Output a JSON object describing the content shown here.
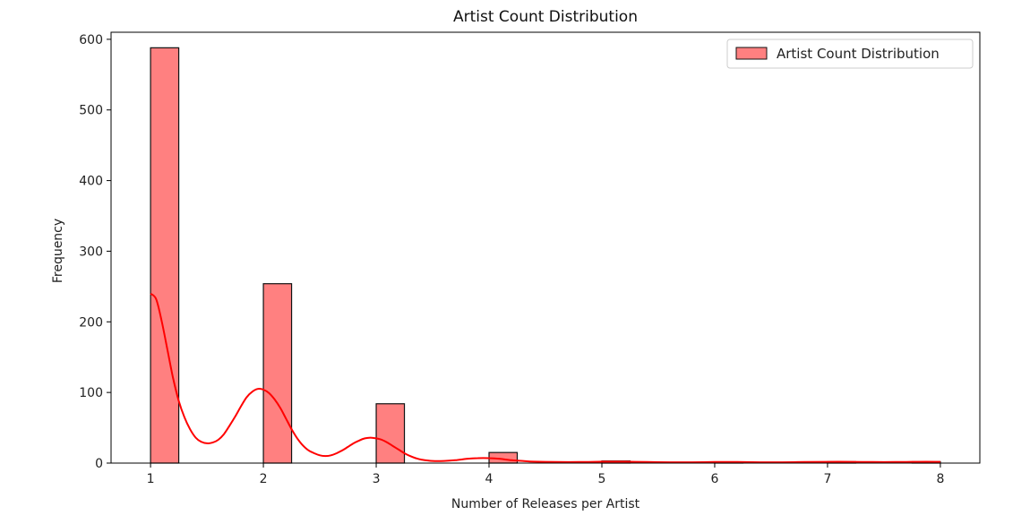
{
  "chart_data": {
    "type": "bar",
    "title": "Artist Count Distribution",
    "xlabel": "Number of Releases per Artist",
    "ylabel": "Frequency",
    "xlim": [
      0.65,
      8.35
    ],
    "ylim": [
      0,
      610
    ],
    "xticks": [
      1,
      2,
      3,
      4,
      5,
      6,
      7,
      8
    ],
    "yticks": [
      0,
      100,
      200,
      300,
      400,
      500,
      600
    ],
    "grid": false,
    "legend_position": "top-right",
    "series": [
      {
        "name": "Artist Count Distribution",
        "type": "histogram",
        "color": "#ff8080",
        "edge_color": "#111111",
        "bin_width": 0.25,
        "bins": [
          {
            "start": 1.0,
            "end": 1.25,
            "value": 588
          },
          {
            "start": 2.0,
            "end": 2.25,
            "value": 254
          },
          {
            "start": 3.0,
            "end": 3.25,
            "value": 84
          },
          {
            "start": 4.0,
            "end": 4.25,
            "value": 15
          },
          {
            "start": 5.0,
            "end": 5.25,
            "value": 3
          },
          {
            "start": 6.0,
            "end": 6.25,
            "value": 1
          },
          {
            "start": 7.0,
            "end": 7.25,
            "value": 2
          },
          {
            "start": 7.75,
            "end": 8.0,
            "value": 2
          }
        ]
      },
      {
        "type": "kde",
        "color": "#ff0000",
        "points": [
          [
            1.0,
            240
          ],
          [
            1.05,
            232
          ],
          [
            1.1,
            200
          ],
          [
            1.15,
            160
          ],
          [
            1.2,
            120
          ],
          [
            1.25,
            88
          ],
          [
            1.3,
            65
          ],
          [
            1.35,
            48
          ],
          [
            1.4,
            36
          ],
          [
            1.45,
            30
          ],
          [
            1.5,
            28
          ],
          [
            1.55,
            29
          ],
          [
            1.6,
            33
          ],
          [
            1.65,
            41
          ],
          [
            1.7,
            53
          ],
          [
            1.75,
            66
          ],
          [
            1.8,
            80
          ],
          [
            1.85,
            93
          ],
          [
            1.9,
            101
          ],
          [
            1.95,
            105
          ],
          [
            2.0,
            104
          ],
          [
            2.05,
            99
          ],
          [
            2.1,
            90
          ],
          [
            2.15,
            78
          ],
          [
            2.2,
            63
          ],
          [
            2.25,
            48
          ],
          [
            2.3,
            35
          ],
          [
            2.35,
            25
          ],
          [
            2.4,
            18
          ],
          [
            2.45,
            14
          ],
          [
            2.5,
            11
          ],
          [
            2.55,
            10
          ],
          [
            2.6,
            11
          ],
          [
            2.65,
            14
          ],
          [
            2.7,
            18
          ],
          [
            2.75,
            23
          ],
          [
            2.8,
            28
          ],
          [
            2.85,
            32
          ],
          [
            2.9,
            35
          ],
          [
            2.95,
            36
          ],
          [
            3.0,
            35
          ],
          [
            3.05,
            33
          ],
          [
            3.1,
            29
          ],
          [
            3.15,
            24
          ],
          [
            3.2,
            19
          ],
          [
            3.25,
            14
          ],
          [
            3.3,
            10
          ],
          [
            3.35,
            7
          ],
          [
            3.4,
            5
          ],
          [
            3.5,
            3
          ],
          [
            3.6,
            3
          ],
          [
            3.7,
            4
          ],
          [
            3.8,
            6
          ],
          [
            3.9,
            7
          ],
          [
            4.0,
            7
          ],
          [
            4.1,
            6
          ],
          [
            4.2,
            4
          ],
          [
            4.3,
            3
          ],
          [
            4.4,
            2
          ],
          [
            4.6,
            1.5
          ],
          [
            4.8,
            1.5
          ],
          [
            5.0,
            2
          ],
          [
            5.2,
            2
          ],
          [
            5.4,
            1.5
          ],
          [
            5.6,
            1.2
          ],
          [
            5.8,
            1.2
          ],
          [
            6.0,
            1.5
          ],
          [
            6.2,
            1.5
          ],
          [
            6.4,
            1.2
          ],
          [
            6.6,
            1.2
          ],
          [
            6.8,
            1.5
          ],
          [
            7.0,
            1.8
          ],
          [
            7.2,
            1.8
          ],
          [
            7.4,
            1.5
          ],
          [
            7.6,
            1.5
          ],
          [
            7.8,
            1.8
          ],
          [
            8.0,
            1.8
          ]
        ]
      }
    ]
  }
}
